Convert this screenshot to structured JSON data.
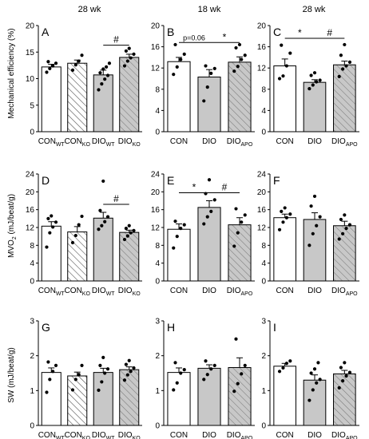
{
  "header_labels": [
    "28 wk",
    "18 wk",
    "28 wk"
  ],
  "ylabels": [
    "Mechanical efficiency (%)",
    "MVO",
    "SW (mJ/beat/g)"
  ],
  "mvo_sub": "2",
  "mvo_unit": " (mJ/beat/g)",
  "colors": {
    "white": "#ffffff",
    "gray": "#c8c8c8",
    "stroke": "#000000"
  },
  "chart_data": [
    {
      "type": "bar",
      "panel": "A",
      "ylim": [
        0,
        20
      ],
      "yticks": [
        0,
        5,
        10,
        15,
        20
      ],
      "categories": [
        [
          "CON",
          "WT"
        ],
        [
          "CON",
          "KO"
        ],
        [
          "DIO",
          "WT"
        ],
        [
          "DIO",
          "KO"
        ]
      ],
      "styles": [
        "white",
        "hatch",
        "gray",
        "graydiag"
      ],
      "values": [
        12.2,
        12.9,
        10.7,
        14.0
      ],
      "errors": [
        0.5,
        0.6,
        0.9,
        0.6
      ],
      "points": [
        [
          11.2,
          11.9,
          12.4,
          12.9,
          13.2
        ],
        [
          11.6,
          12.6,
          13.3,
          14.4
        ],
        [
          7.9,
          9.0,
          9.9,
          10.6,
          11.1,
          11.8,
          12.2,
          12.9
        ],
        [
          12.4,
          13.3,
          13.9,
          14.6,
          15.2,
          15.7
        ]
      ],
      "annotations": [
        {
          "text": "#",
          "from": 2,
          "to": 3,
          "y": 16.3
        }
      ]
    },
    {
      "type": "bar",
      "panel": "B",
      "ylim": [
        0,
        20
      ],
      "yticks": [
        0,
        4,
        8,
        12,
        16,
        20
      ],
      "categories": [
        [
          "CON",
          ""
        ],
        [
          "DIO",
          ""
        ],
        [
          "DIO",
          "APO"
        ]
      ],
      "styles": [
        "white",
        "gray",
        "graydiag"
      ],
      "values": [
        13.2,
        10.3,
        13.1
      ],
      "errors": [
        0.8,
        1.4,
        1.0
      ],
      "points": [
        [
          10.8,
          12.2,
          13.6,
          14.6,
          16.4
        ],
        [
          5.8,
          8.4,
          11.0,
          11.9,
          12.4
        ],
        [
          11.4,
          12.3,
          13.6,
          14.4,
          15.8,
          16.4
        ]
      ],
      "annotations": [
        {
          "text": "p=0.06",
          "from": 0,
          "to": 1,
          "y": 16.8
        },
        {
          "text": "*",
          "from": 1,
          "to": 2,
          "y": 16.8
        }
      ]
    },
    {
      "type": "bar",
      "panel": "C",
      "ylim": [
        0,
        20
      ],
      "yticks": [
        0,
        4,
        8,
        12,
        16,
        20
      ],
      "categories": [
        [
          "CON",
          ""
        ],
        [
          "DIO",
          ""
        ],
        [
          "DIO",
          "APO"
        ]
      ],
      "styles": [
        "white",
        "gray",
        "graydiag"
      ],
      "values": [
        12.4,
        9.3,
        12.6
      ],
      "errors": [
        1.3,
        0.5,
        0.7
      ],
      "points": [
        [
          10.0,
          10.5,
          12.4,
          14.8,
          16.3
        ],
        [
          8.1,
          8.8,
          9.4,
          9.7,
          10.6,
          11.1
        ],
        [
          10.4,
          11.8,
          12.4,
          13.1,
          14.4,
          16.4
        ]
      ],
      "annotations": [
        {
          "text": "*",
          "from": 0,
          "to": 1,
          "y": 17.6
        },
        {
          "text": "#",
          "from": 1,
          "to": 2,
          "y": 17.6
        }
      ]
    },
    {
      "type": "bar",
      "panel": "D",
      "ylim": [
        0,
        24
      ],
      "yticks": [
        0,
        4,
        8,
        12,
        16,
        20,
        24
      ],
      "categories": [
        [
          "CON",
          "WT"
        ],
        [
          "CON",
          "KO"
        ],
        [
          "DIO",
          "WT"
        ],
        [
          "DIO",
          "KO"
        ]
      ],
      "styles": [
        "white",
        "hatch",
        "gray",
        "graydiag"
      ],
      "values": [
        12.3,
        11.0,
        14.1,
        10.9
      ],
      "errors": [
        1.0,
        1.2,
        1.3,
        0.5
      ],
      "points": [
        [
          7.6,
          10.8,
          12.1,
          13.2,
          14.0,
          14.6
        ],
        [
          8.6,
          10.2,
          12.6,
          14.5
        ],
        [
          11.6,
          12.4,
          13.3,
          14.4,
          15.8,
          22.4
        ],
        [
          9.3,
          10.1,
          10.8,
          11.3,
          11.8,
          12.4
        ]
      ],
      "annotations": [
        {
          "text": "#",
          "from": 2,
          "to": 3,
          "y": 17.2
        }
      ]
    },
    {
      "type": "bar",
      "panel": "E",
      "ylim": [
        0,
        24
      ],
      "yticks": [
        0,
        4,
        8,
        12,
        16,
        20,
        24
      ],
      "categories": [
        [
          "CON",
          ""
        ],
        [
          "DIO",
          ""
        ],
        [
          "DIO",
          "APO"
        ]
      ],
      "styles": [
        "white",
        "gray",
        "graydiag"
      ],
      "values": [
        11.6,
        16.5,
        12.6
      ],
      "errors": [
        1.2,
        1.5,
        1.6
      ],
      "points": [
        [
          7.4,
          10.0,
          11.8,
          12.6,
          13.4
        ],
        [
          12.8,
          14.4,
          15.6,
          18.2,
          19.6,
          22.7
        ],
        [
          7.8,
          10.8,
          13.2,
          14.8,
          16.2
        ]
      ],
      "annotations": [
        {
          "text": "*",
          "from": 0,
          "to": 1,
          "y": 19.8
        },
        {
          "text": "#",
          "from": 1,
          "to": 2,
          "y": 19.8
        }
      ]
    },
    {
      "type": "bar",
      "panel": "F",
      "ylim": [
        0,
        24
      ],
      "yticks": [
        0,
        4,
        8,
        12,
        16,
        20,
        24
      ],
      "categories": [
        [
          "CON",
          ""
        ],
        [
          "DIO",
          ""
        ],
        [
          "DIO",
          "APO"
        ]
      ],
      "styles": [
        "white",
        "gray",
        "graydiag"
      ],
      "values": [
        14.2,
        13.8,
        12.4
      ],
      "errors": [
        0.8,
        1.5,
        1.0
      ],
      "points": [
        [
          11.5,
          13.2,
          14.2,
          15.0,
          15.6,
          16.4
        ],
        [
          8.0,
          10.6,
          12.4,
          14.4,
          16.8,
          19.0
        ],
        [
          9.4,
          10.6,
          11.8,
          12.6,
          13.8,
          14.8
        ]
      ],
      "annotations": []
    },
    {
      "type": "bar",
      "panel": "G",
      "ylim": [
        0,
        3
      ],
      "yticks": [
        0,
        1,
        2,
        3
      ],
      "categories": [
        [
          "CON",
          "WT"
        ],
        [
          "CON",
          "KO"
        ],
        [
          "DIO",
          "WT"
        ],
        [
          "DIO",
          "KO"
        ]
      ],
      "styles": [
        "white",
        "hatch",
        "gray",
        "graydiag"
      ],
      "values": [
        1.52,
        1.42,
        1.52,
        1.6
      ],
      "errors": [
        0.13,
        0.11,
        0.12,
        0.08
      ],
      "points": [
        [
          0.95,
          1.32,
          1.55,
          1.72,
          1.82
        ],
        [
          1.02,
          1.32,
          1.46,
          1.72
        ],
        [
          1.01,
          1.25,
          1.5,
          1.62,
          1.72,
          1.95
        ],
        [
          1.3,
          1.45,
          1.55,
          1.65,
          1.75,
          1.86
        ]
      ],
      "annotations": []
    },
    {
      "type": "bar",
      "panel": "H",
      "ylim": [
        0,
        3
      ],
      "yticks": [
        0,
        1,
        2,
        3
      ],
      "categories": [
        [
          "CON",
          ""
        ],
        [
          "DIO",
          ""
        ],
        [
          "DIO",
          "APO"
        ]
      ],
      "styles": [
        "white",
        "gray",
        "graydiag"
      ],
      "values": [
        1.52,
        1.64,
        1.66
      ],
      "errors": [
        0.13,
        0.1,
        0.28
      ],
      "points": [
        [
          1.02,
          1.22,
          1.5,
          1.6,
          1.8
        ],
        [
          1.32,
          1.46,
          1.62,
          1.72,
          1.85
        ],
        [
          0.98,
          1.2,
          1.48,
          1.72,
          2.48
        ]
      ],
      "annotations": []
    },
    {
      "type": "bar",
      "panel": "I",
      "ylim": [
        0,
        3
      ],
      "yticks": [
        0,
        1,
        2,
        3
      ],
      "categories": [
        [
          "CON",
          ""
        ],
        [
          "DIO",
          ""
        ],
        [
          "DIO",
          "APO"
        ]
      ],
      "styles": [
        "white",
        "gray",
        "graydiag"
      ],
      "values": [
        1.7,
        1.3,
        1.48
      ],
      "errors": [
        0.08,
        0.15,
        0.1
      ],
      "points": [
        [
          1.55,
          1.65,
          1.78,
          1.85
        ],
        [
          0.72,
          1.02,
          1.22,
          1.32,
          1.5,
          1.62,
          1.8
        ],
        [
          1.08,
          1.28,
          1.42,
          1.52,
          1.66,
          1.8
        ]
      ],
      "annotations": []
    }
  ]
}
